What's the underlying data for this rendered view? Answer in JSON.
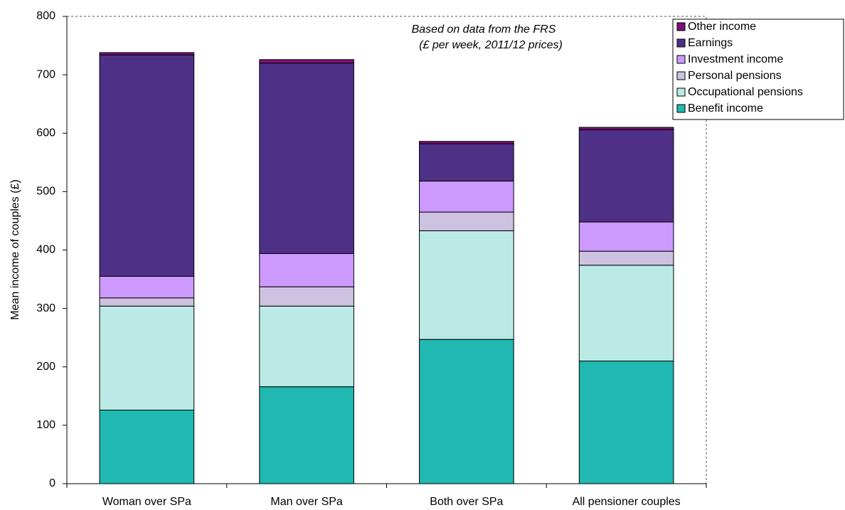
{
  "chart_data": {
    "type": "stacked-bar",
    "y_label": "Mean income of couples (£)",
    "annotations": [
      "Based on data from the FRS",
      "(£ per week, 2011/12 prices)"
    ],
    "categories": [
      "Woman over SPa",
      "Man over SPa",
      "Both over SPa",
      "All pensioner couples"
    ],
    "series": [
      {
        "name": "Benefit income",
        "color": "#20b8b0",
        "values": [
          126,
          166,
          247,
          210
        ]
      },
      {
        "name": "Occupational pensions",
        "color": "#bbeae6",
        "values": [
          178,
          138,
          186,
          164
        ]
      },
      {
        "name": "Personal pensions",
        "color": "#cdc3e1",
        "values": [
          14,
          33,
          32,
          24
        ]
      },
      {
        "name": "Investment income",
        "color": "#cc99ff",
        "values": [
          37,
          57,
          53,
          50
        ]
      },
      {
        "name": "Earnings",
        "color": "#4f3087",
        "values": [
          379,
          326,
          64,
          158
        ]
      },
      {
        "name": "Other income",
        "color": "#7f1077",
        "values": [
          4,
          6,
          4,
          4
        ]
      }
    ],
    "ylim": [
      0,
      800
    ],
    "yticks": [
      0,
      100,
      200,
      300,
      400,
      500,
      600,
      700,
      800
    ]
  }
}
